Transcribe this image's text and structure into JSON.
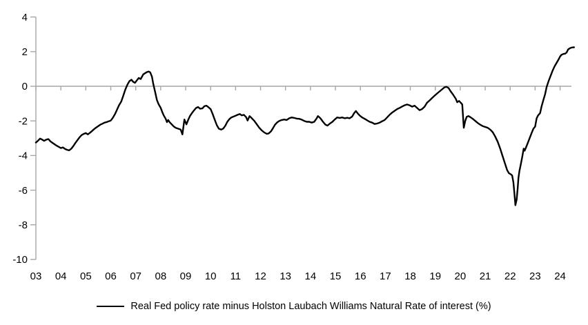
{
  "chart_data": {
    "type": "line",
    "title": "",
    "xlabel": "",
    "ylabel": "",
    "legend": "Real Fed policy rate minus Holston Laubach Williams Natural Rate of interest (%)",
    "legend_position": "bottom-center",
    "grid": "horizontal zero line only",
    "axis_color": "#a6a6a6",
    "line_color": "#000000",
    "text_color": "#000000",
    "background_color": "#ffffff",
    "ylim": [
      -10,
      4
    ],
    "yticks": [
      4,
      2,
      0,
      -2,
      -4,
      -6,
      -8,
      -10
    ],
    "x_tick_labels": [
      "03",
      "04",
      "05",
      "06",
      "07",
      "08",
      "09",
      "10",
      "11",
      "12",
      "13",
      "14",
      "15",
      "16",
      "17",
      "18",
      "19",
      "20",
      "21",
      "22",
      "23",
      "24"
    ],
    "x_tick_years": [
      2003,
      2004,
      2005,
      2006,
      2007,
      2008,
      2009,
      2010,
      2011,
      2012,
      2013,
      2014,
      2015,
      2016,
      2017,
      2018,
      2019,
      2020,
      2021,
      2022,
      2023,
      2024
    ],
    "x_range_years": [
      2003.0,
      2024.6
    ],
    "series": [
      {
        "name": "Real Fed policy rate minus Holston Laubach Williams Natural Rate of interest (%)",
        "color": "#000000",
        "points": [
          [
            2003.0,
            -3.25
          ],
          [
            2003.08,
            -3.15
          ],
          [
            2003.17,
            -3.02
          ],
          [
            2003.25,
            -3.08
          ],
          [
            2003.33,
            -3.15
          ],
          [
            2003.42,
            -3.08
          ],
          [
            2003.5,
            -3.05
          ],
          [
            2003.58,
            -3.18
          ],
          [
            2003.67,
            -3.27
          ],
          [
            2003.75,
            -3.35
          ],
          [
            2003.83,
            -3.43
          ],
          [
            2003.92,
            -3.5
          ],
          [
            2004.0,
            -3.57
          ],
          [
            2004.08,
            -3.53
          ],
          [
            2004.17,
            -3.62
          ],
          [
            2004.25,
            -3.67
          ],
          [
            2004.33,
            -3.7
          ],
          [
            2004.42,
            -3.6
          ],
          [
            2004.5,
            -3.45
          ],
          [
            2004.58,
            -3.28
          ],
          [
            2004.67,
            -3.1
          ],
          [
            2004.75,
            -2.95
          ],
          [
            2004.83,
            -2.82
          ],
          [
            2004.92,
            -2.75
          ],
          [
            2005.0,
            -2.7
          ],
          [
            2005.08,
            -2.78
          ],
          [
            2005.17,
            -2.68
          ],
          [
            2005.25,
            -2.58
          ],
          [
            2005.33,
            -2.48
          ],
          [
            2005.42,
            -2.38
          ],
          [
            2005.5,
            -2.3
          ],
          [
            2005.58,
            -2.22
          ],
          [
            2005.67,
            -2.16
          ],
          [
            2005.75,
            -2.1
          ],
          [
            2005.83,
            -2.07
          ],
          [
            2005.92,
            -2.02
          ],
          [
            2006.0,
            -1.98
          ],
          [
            2006.08,
            -1.83
          ],
          [
            2006.17,
            -1.6
          ],
          [
            2006.25,
            -1.35
          ],
          [
            2006.33,
            -1.1
          ],
          [
            2006.42,
            -0.88
          ],
          [
            2006.5,
            -0.55
          ],
          [
            2006.58,
            -0.2
          ],
          [
            2006.67,
            0.1
          ],
          [
            2006.75,
            0.3
          ],
          [
            2006.83,
            0.38
          ],
          [
            2006.9,
            0.25
          ],
          [
            2006.97,
            0.2
          ],
          [
            2007.05,
            0.35
          ],
          [
            2007.12,
            0.48
          ],
          [
            2007.2,
            0.42
          ],
          [
            2007.3,
            0.68
          ],
          [
            2007.38,
            0.76
          ],
          [
            2007.45,
            0.82
          ],
          [
            2007.52,
            0.85
          ],
          [
            2007.58,
            0.8
          ],
          [
            2007.65,
            0.55
          ],
          [
            2007.7,
            0.15
          ],
          [
            2007.78,
            -0.35
          ],
          [
            2007.85,
            -0.8
          ],
          [
            2007.92,
            -1.05
          ],
          [
            2008.0,
            -1.25
          ],
          [
            2008.06,
            -1.48
          ],
          [
            2008.12,
            -1.68
          ],
          [
            2008.2,
            -1.88
          ],
          [
            2008.25,
            -2.07
          ],
          [
            2008.3,
            -1.95
          ],
          [
            2008.36,
            -2.08
          ],
          [
            2008.44,
            -2.2
          ],
          [
            2008.52,
            -2.32
          ],
          [
            2008.6,
            -2.4
          ],
          [
            2008.7,
            -2.45
          ],
          [
            2008.8,
            -2.5
          ],
          [
            2008.87,
            -2.78
          ],
          [
            2008.95,
            -1.92
          ],
          [
            2009.03,
            -2.2
          ],
          [
            2009.1,
            -1.95
          ],
          [
            2009.17,
            -1.72
          ],
          [
            2009.25,
            -1.55
          ],
          [
            2009.33,
            -1.4
          ],
          [
            2009.42,
            -1.25
          ],
          [
            2009.5,
            -1.2
          ],
          [
            2009.58,
            -1.3
          ],
          [
            2009.67,
            -1.28
          ],
          [
            2009.75,
            -1.15
          ],
          [
            2009.83,
            -1.12
          ],
          [
            2009.92,
            -1.22
          ],
          [
            2010.0,
            -1.32
          ],
          [
            2010.08,
            -1.6
          ],
          [
            2010.17,
            -1.95
          ],
          [
            2010.25,
            -2.25
          ],
          [
            2010.33,
            -2.45
          ],
          [
            2010.42,
            -2.5
          ],
          [
            2010.5,
            -2.45
          ],
          [
            2010.58,
            -2.3
          ],
          [
            2010.67,
            -2.05
          ],
          [
            2010.75,
            -1.9
          ],
          [
            2010.83,
            -1.8
          ],
          [
            2010.92,
            -1.75
          ],
          [
            2011.0,
            -1.7
          ],
          [
            2011.08,
            -1.65
          ],
          [
            2011.17,
            -1.6
          ],
          [
            2011.25,
            -1.68
          ],
          [
            2011.33,
            -1.65
          ],
          [
            2011.42,
            -1.78
          ],
          [
            2011.48,
            -1.98
          ],
          [
            2011.56,
            -1.72
          ],
          [
            2011.65,
            -1.85
          ],
          [
            2011.75,
            -2.0
          ],
          [
            2011.85,
            -2.2
          ],
          [
            2011.95,
            -2.4
          ],
          [
            2012.05,
            -2.55
          ],
          [
            2012.15,
            -2.67
          ],
          [
            2012.25,
            -2.75
          ],
          [
            2012.33,
            -2.72
          ],
          [
            2012.42,
            -2.6
          ],
          [
            2012.5,
            -2.42
          ],
          [
            2012.58,
            -2.22
          ],
          [
            2012.67,
            -2.08
          ],
          [
            2012.75,
            -2.0
          ],
          [
            2012.85,
            -1.95
          ],
          [
            2012.95,
            -1.92
          ],
          [
            2013.05,
            -1.95
          ],
          [
            2013.15,
            -1.85
          ],
          [
            2013.25,
            -1.8
          ],
          [
            2013.35,
            -1.83
          ],
          [
            2013.45,
            -1.87
          ],
          [
            2013.55,
            -1.88
          ],
          [
            2013.65,
            -1.93
          ],
          [
            2013.75,
            -2.0
          ],
          [
            2013.85,
            -2.05
          ],
          [
            2013.95,
            -2.05
          ],
          [
            2014.05,
            -2.1
          ],
          [
            2014.15,
            -2.05
          ],
          [
            2014.25,
            -1.85
          ],
          [
            2014.3,
            -1.72
          ],
          [
            2014.4,
            -1.85
          ],
          [
            2014.5,
            -2.05
          ],
          [
            2014.6,
            -2.22
          ],
          [
            2014.68,
            -2.27
          ],
          [
            2014.78,
            -2.15
          ],
          [
            2014.88,
            -2.05
          ],
          [
            2014.97,
            -1.92
          ],
          [
            2015.07,
            -1.8
          ],
          [
            2015.17,
            -1.83
          ],
          [
            2015.27,
            -1.8
          ],
          [
            2015.37,
            -1.85
          ],
          [
            2015.47,
            -1.82
          ],
          [
            2015.57,
            -1.85
          ],
          [
            2015.67,
            -1.75
          ],
          [
            2015.75,
            -1.55
          ],
          [
            2015.82,
            -1.43
          ],
          [
            2015.9,
            -1.58
          ],
          [
            2015.98,
            -1.7
          ],
          [
            2016.07,
            -1.8
          ],
          [
            2016.17,
            -1.88
          ],
          [
            2016.27,
            -1.97
          ],
          [
            2016.37,
            -2.05
          ],
          [
            2016.47,
            -2.1
          ],
          [
            2016.57,
            -2.18
          ],
          [
            2016.67,
            -2.15
          ],
          [
            2016.77,
            -2.1
          ],
          [
            2016.87,
            -2.02
          ],
          [
            2016.97,
            -1.95
          ],
          [
            2017.07,
            -1.8
          ],
          [
            2017.17,
            -1.65
          ],
          [
            2017.27,
            -1.52
          ],
          [
            2017.37,
            -1.42
          ],
          [
            2017.47,
            -1.32
          ],
          [
            2017.57,
            -1.25
          ],
          [
            2017.67,
            -1.17
          ],
          [
            2017.77,
            -1.1
          ],
          [
            2017.87,
            -1.05
          ],
          [
            2017.97,
            -1.1
          ],
          [
            2018.07,
            -1.18
          ],
          [
            2018.17,
            -1.12
          ],
          [
            2018.27,
            -1.25
          ],
          [
            2018.37,
            -1.38
          ],
          [
            2018.47,
            -1.32
          ],
          [
            2018.57,
            -1.18
          ],
          [
            2018.67,
            -0.95
          ],
          [
            2018.77,
            -0.82
          ],
          [
            2018.87,
            -0.68
          ],
          [
            2018.97,
            -0.55
          ],
          [
            2019.07,
            -0.42
          ],
          [
            2019.17,
            -0.3
          ],
          [
            2019.27,
            -0.18
          ],
          [
            2019.37,
            -0.06
          ],
          [
            2019.45,
            -0.03
          ],
          [
            2019.53,
            -0.1
          ],
          [
            2019.62,
            -0.3
          ],
          [
            2019.72,
            -0.5
          ],
          [
            2019.82,
            -0.72
          ],
          [
            2019.88,
            -0.92
          ],
          [
            2019.95,
            -0.85
          ],
          [
            2020.02,
            -0.95
          ],
          [
            2020.08,
            -1.05
          ],
          [
            2020.14,
            -2.4
          ],
          [
            2020.2,
            -2.0
          ],
          [
            2020.26,
            -1.76
          ],
          [
            2020.33,
            -1.72
          ],
          [
            2020.4,
            -1.78
          ],
          [
            2020.5,
            -1.88
          ],
          [
            2020.6,
            -2.0
          ],
          [
            2020.7,
            -2.12
          ],
          [
            2020.8,
            -2.22
          ],
          [
            2020.9,
            -2.3
          ],
          [
            2021.0,
            -2.35
          ],
          [
            2021.1,
            -2.4
          ],
          [
            2021.2,
            -2.5
          ],
          [
            2021.3,
            -2.65
          ],
          [
            2021.4,
            -2.9
          ],
          [
            2021.5,
            -3.2
          ],
          [
            2021.6,
            -3.6
          ],
          [
            2021.7,
            -4.05
          ],
          [
            2021.8,
            -4.5
          ],
          [
            2021.88,
            -4.85
          ],
          [
            2021.95,
            -5.02
          ],
          [
            2022.02,
            -5.08
          ],
          [
            2022.08,
            -5.15
          ],
          [
            2022.13,
            -5.55
          ],
          [
            2022.17,
            -6.2
          ],
          [
            2022.21,
            -6.87
          ],
          [
            2022.26,
            -6.55
          ],
          [
            2022.3,
            -5.9
          ],
          [
            2022.33,
            -5.3
          ],
          [
            2022.37,
            -4.9
          ],
          [
            2022.42,
            -4.55
          ],
          [
            2022.46,
            -4.25
          ],
          [
            2022.5,
            -3.95
          ],
          [
            2022.54,
            -3.6
          ],
          [
            2022.58,
            -3.72
          ],
          [
            2022.63,
            -3.55
          ],
          [
            2022.7,
            -3.3
          ],
          [
            2022.78,
            -3.0
          ],
          [
            2022.86,
            -2.7
          ],
          [
            2022.93,
            -2.45
          ],
          [
            2023.0,
            -2.33
          ],
          [
            2023.06,
            -1.85
          ],
          [
            2023.12,
            -1.68
          ],
          [
            2023.2,
            -1.55
          ],
          [
            2023.26,
            -1.15
          ],
          [
            2023.33,
            -0.8
          ],
          [
            2023.4,
            -0.45
          ],
          [
            2023.46,
            -0.05
          ],
          [
            2023.54,
            0.3
          ],
          [
            2023.62,
            0.6
          ],
          [
            2023.7,
            0.9
          ],
          [
            2023.78,
            1.15
          ],
          [
            2023.86,
            1.35
          ],
          [
            2023.94,
            1.55
          ],
          [
            2024.0,
            1.72
          ],
          [
            2024.06,
            1.82
          ],
          [
            2024.14,
            1.87
          ],
          [
            2024.2,
            1.88
          ],
          [
            2024.26,
            1.95
          ],
          [
            2024.32,
            2.12
          ],
          [
            2024.4,
            2.2
          ],
          [
            2024.48,
            2.24
          ],
          [
            2024.56,
            2.25
          ]
        ]
      }
    ]
  }
}
